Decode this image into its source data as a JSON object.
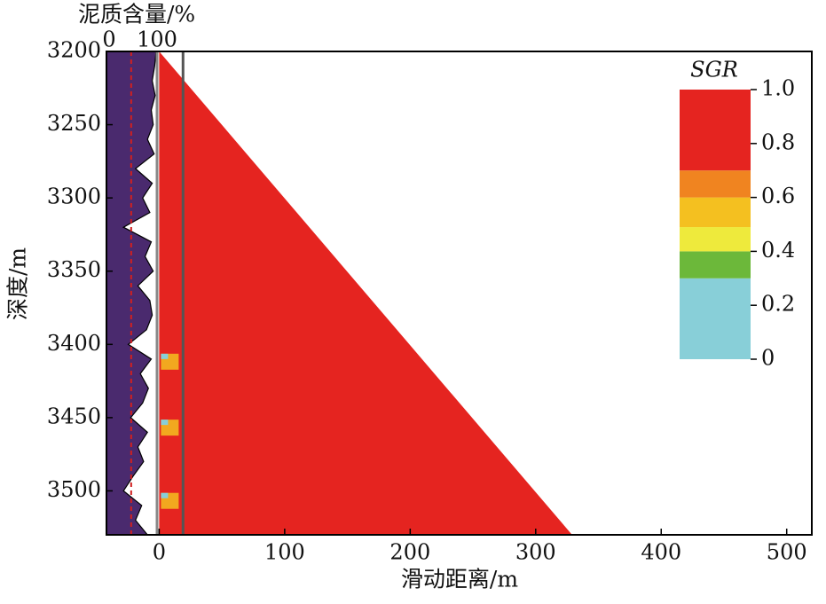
{
  "chart_data": {
    "type": "area",
    "xlabel": "滑动距离/m",
    "ylabel": "深度/m",
    "xlim": [
      -42,
      520
    ],
    "xticks": [
      0,
      100,
      200,
      300,
      400,
      500
    ],
    "ylim": [
      3200,
      3530
    ],
    "yticks": [
      3200,
      3250,
      3300,
      3350,
      3400,
      3450,
      3500
    ],
    "region": {
      "x": [
        0,
        0,
        329
      ],
      "y": [
        3200,
        3530,
        3530
      ],
      "value": 1.0
    },
    "marker_line_x": 19,
    "mud_content": {
      "label": "泥质含量/%",
      "xlim": [
        0,
        100
      ],
      "xticks": [
        0,
        100
      ],
      "threshold": 46,
      "color": "#4a2a6e",
      "threshold_color": "#d02020",
      "depth": [
        3200,
        3210,
        3220,
        3230,
        3240,
        3250,
        3260,
        3270,
        3280,
        3290,
        3300,
        3310,
        3320,
        3330,
        3340,
        3350,
        3360,
        3370,
        3380,
        3390,
        3400,
        3410,
        3420,
        3430,
        3440,
        3450,
        3460,
        3470,
        3480,
        3490,
        3500,
        3510,
        3520,
        3530
      ],
      "values": [
        98,
        95,
        90,
        96,
        88,
        92,
        80,
        94,
        55,
        90,
        70,
        85,
        30,
        88,
        75,
        92,
        60,
        85,
        90,
        78,
        40,
        88,
        65,
        82,
        70,
        45,
        80,
        60,
        72,
        50,
        30,
        68,
        55,
        80
      ]
    },
    "colorbar": {
      "title": "SGR",
      "lim": [
        0,
        1
      ],
      "ticks": [
        {
          "value": 1,
          "label": "1.0"
        },
        0.8,
        0.6,
        0.4,
        0.2,
        0
      ],
      "bands": [
        {
          "from": 0,
          "to": 0.3,
          "color": "#88cfd8"
        },
        {
          "from": 0.3,
          "to": 0.4,
          "color": "#6cb83a"
        },
        {
          "from": 0.4,
          "to": 0.49,
          "color": "#eeea3c"
        },
        {
          "from": 0.49,
          "to": 0.6,
          "color": "#f4c020"
        },
        {
          "from": 0.6,
          "to": 0.7,
          "color": "#f08420"
        },
        {
          "from": 0.7,
          "to": 1,
          "color": "#e52420"
        }
      ]
    }
  }
}
